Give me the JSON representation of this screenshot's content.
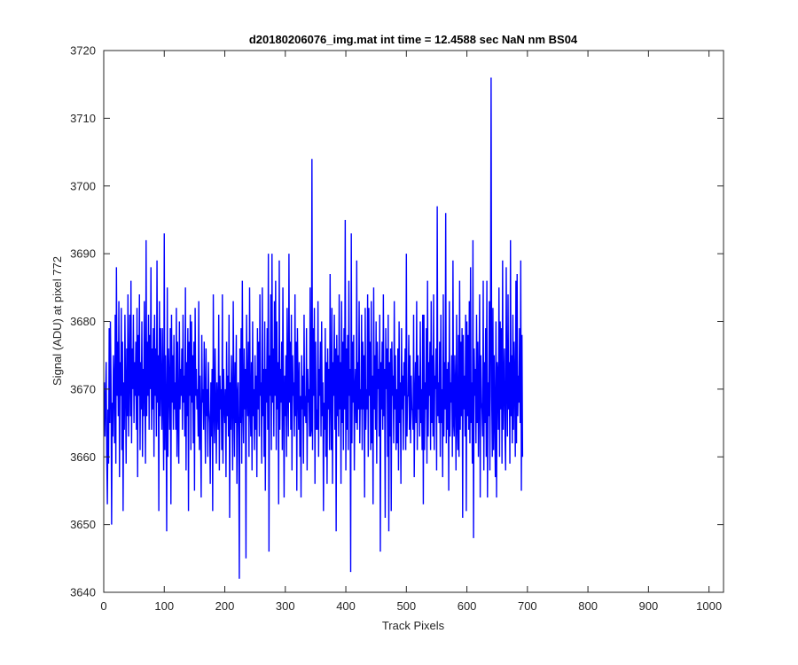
{
  "chart_data": {
    "type": "line",
    "title": "d20180206076_img.mat int time = 12.4588 sec  NaN nm BS04",
    "xlabel": "Track Pixels",
    "ylabel": "Signal (ADU) at pixel 772",
    "xlim": [
      0,
      1024
    ],
    "ylim": [
      3640,
      3720
    ],
    "xticks": [
      0,
      100,
      200,
      300,
      400,
      500,
      600,
      700,
      800,
      900,
      1000
    ],
    "yticks": [
      3640,
      3650,
      3660,
      3670,
      3680,
      3690,
      3700,
      3710,
      3720
    ],
    "grid": false,
    "legend": "none",
    "series": [
      {
        "color": "#0000ff",
        "x_start": 1,
        "x_step": 1,
        "values": [
          3671,
          3663,
          3668,
          3674,
          3660,
          3653,
          3667,
          3659,
          3679,
          3665,
          3680,
          3672,
          3650,
          3668,
          3663,
          3675,
          3671,
          3662,
          3681,
          3659,
          3688,
          3669,
          3677,
          3666,
          3683,
          3657,
          3674,
          3669,
          3682,
          3661,
          3677,
          3652,
          3671,
          3664,
          3681,
          3670,
          3659,
          3676,
          3666,
          3684,
          3663,
          3672,
          3681,
          3666,
          3686,
          3662,
          3676,
          3670,
          3681,
          3665,
          3674,
          3669,
          3677,
          3664,
          3682,
          3657,
          3678,
          3669,
          3684,
          3661,
          3674,
          3667,
          3680,
          3660,
          3673,
          3666,
          3683,
          3670,
          3659,
          3692,
          3666,
          3677,
          3669,
          3681,
          3664,
          3678,
          3670,
          3688,
          3664,
          3676,
          3667,
          3679,
          3660,
          3681,
          3669,
          3676,
          3663,
          3689,
          3668,
          3675,
          3652,
          3683,
          3666,
          3679,
          3670,
          3664,
          3679,
          3668,
          3658,
          3693,
          3661,
          3675,
          3667,
          3649,
          3685,
          3660,
          3676,
          3671,
          3664,
          3679,
          3653,
          3681,
          3668,
          3675,
          3664,
          3678,
          3667,
          3671,
          3664,
          3682,
          3660,
          3677,
          3666,
          3659,
          3680,
          3667,
          3673,
          3669,
          3676,
          3664,
          3681,
          3668,
          3672,
          3663,
          3685,
          3658,
          3674,
          3666,
          3679,
          3652,
          3677,
          3669,
          3681,
          3661,
          3680,
          3668,
          3675,
          3662,
          3677,
          3655,
          3682,
          3669,
          3673,
          3667,
          3670,
          3663,
          3683,
          3661,
          3672,
          3665,
          3654,
          3678,
          3668,
          3670,
          3664,
          3677,
          3669,
          3659,
          3676,
          3666,
          3670,
          3660,
          3674,
          3667,
          3665,
          3656,
          3671,
          3663,
          3673,
          3652,
          3684,
          3668,
          3662,
          3676,
          3668,
          3659,
          3671,
          3667,
          3664,
          3681,
          3658,
          3672,
          3667,
          3670,
          3661,
          3684,
          3659,
          3673,
          3668,
          3665,
          3670,
          3657,
          3677,
          3666,
          3672,
          3663,
          3681,
          3651,
          3671,
          3664,
          3675,
          3668,
          3658,
          3683,
          3669,
          3660,
          3674,
          3665,
          3678,
          3656,
          3669,
          3671,
          3663,
          3642,
          3676,
          3665,
          3679,
          3659,
          3686,
          3668,
          3662,
          3676,
          3667,
          3673,
          3645,
          3681,
          3670,
          3666,
          3677,
          3660,
          3685,
          3668,
          3663,
          3674,
          3658,
          3680,
          3666,
          3670,
          3661,
          3675,
          3664,
          3672,
          3657,
          3679,
          3667,
          3677,
          3663,
          3684,
          3669,
          3671,
          3659,
          3685,
          3666,
          3673,
          3660,
          3680,
          3655,
          3673,
          3668,
          3679,
          3664,
          3690,
          3646,
          3675,
          3669,
          3684,
          3661,
          3690,
          3668,
          3676,
          3663,
          3683,
          3669,
          3686,
          3661,
          3680,
          3667,
          3674,
          3653,
          3689,
          3664,
          3673,
          3668,
          3677,
          3661,
          3685,
          3669,
          3654,
          3672,
          3666,
          3675,
          3660,
          3682,
          3670,
          3663,
          3690,
          3668,
          3677,
          3664,
          3681,
          3658,
          3675,
          3669,
          3671,
          3663,
          3684,
          3666,
          3677,
          3655,
          3679,
          3671,
          3664,
          3674,
          3660,
          3669,
          3654,
          3675,
          3667,
          3672,
          3659,
          3681,
          3666,
          3669,
          3665,
          3679,
          3658,
          3673,
          3668,
          3670,
          3663,
          3685,
          3663,
          3664,
          3704,
          3661,
          3679,
          3669,
          3682,
          3656,
          3677,
          3664,
          3667,
          3664,
          3683,
          3660,
          3673,
          3669,
          3677,
          3663,
          3680,
          3666,
          3671,
          3652,
          3668,
          3664,
          3679,
          3660,
          3674,
          3656,
          3676,
          3667,
          3673,
          3661,
          3687,
          3669,
          3661,
          3682,
          3656,
          3674,
          3669,
          3681,
          3664,
          3676,
          3649,
          3678,
          3666,
          3675,
          3663,
          3684,
          3667,
          3674,
          3656,
          3683,
          3665,
          3677,
          3661,
          3679,
          3667,
          3695,
          3658,
          3676,
          3664,
          3678,
          3661,
          3686,
          3669,
          3673,
          3643,
          3693,
          3662,
          3677,
          3668,
          3678,
          3658,
          3670,
          3673,
          3665,
          3689,
          3664,
          3674,
          3667,
          3683,
          3662,
          3670,
          3667,
          3681,
          3661,
          3677,
          3667,
          3675,
          3654,
          3682,
          3664,
          3670,
          3667,
          3684,
          3660,
          3682,
          3669,
          3677,
          3661,
          3683,
          3662,
          3672,
          3653,
          3685,
          3667,
          3675,
          3664,
          3680,
          3659,
          3677,
          3670,
          3673,
          3663,
          3681,
          3646,
          3674,
          3667,
          3677,
          3664,
          3684,
          3666,
          3673,
          3651,
          3679,
          3670,
          3676,
          3660,
          3681,
          3649,
          3674,
          3663,
          3676,
          3652,
          3677,
          3669,
          3672,
          3662,
          3683,
          3667,
          3675,
          3661,
          3670,
          3662,
          3676,
          3658,
          3680,
          3665,
          3671,
          3656,
          3679,
          3667,
          3672,
          3661,
          3674,
          3669,
          3676,
          3661,
          3690,
          3663,
          3669,
          3669,
          3678,
          3664,
          3675,
          3662,
          3672,
          3667,
          3667,
          3664,
          3681,
          3657,
          3668,
          3674,
          3665,
          3683,
          3661,
          3675,
          3667,
          3672,
          3663,
          3680,
          3665,
          3670,
          3661,
          3681,
          3653,
          3681,
          3661,
          3671,
          3667,
          3679,
          3659,
          3686,
          3663,
          3674,
          3669,
          3677,
          3661,
          3683,
          3665,
          3675,
          3663,
          3684,
          3661,
          3672,
          3670,
          3676,
          3658,
          3697,
          3666,
          3671,
          3665,
          3677,
          3660,
          3681,
          3665,
          3670,
          3657,
          3684,
          3663,
          3674,
          3667,
          3696,
          3662,
          3673,
          3664,
          3674,
          3655,
          3683,
          3663,
          3671,
          3668,
          3675,
          3660,
          3689,
          3665,
          3663,
          3675,
          3670,
          3658,
          3681,
          3665,
          3661,
          3678,
          3660,
          3686,
          3664,
          3677,
          3666,
          3679,
          3651,
          3678,
          3667,
          3672,
          3663,
          3681,
          3652,
          3680,
          3666,
          3678,
          3664,
          3683,
          3662,
          3688,
          3665,
          3671,
          3659,
          3692,
          3648,
          3676,
          3669,
          3673,
          3662,
          3681,
          3665,
          3677,
          3660,
          3670,
          3684,
          3654,
          3675,
          3668,
          3667,
          3663,
          3686,
          3658,
          3674,
          3665,
          3679,
          3660,
          3686,
          3654,
          3671,
          3666,
          3683,
          3658,
          3677,
          3716,
          3669,
          3660,
          3682,
          3661,
          3675,
          3666,
          3657,
          3680,
          3654,
          3674,
          3672,
          3664,
          3685,
          3660,
          3680,
          3667,
          3679,
          3659,
          3689,
          3664,
          3670,
          3676,
          3663,
          3658,
          3688,
          3671,
          3663,
          3684,
          3667,
          3674,
          3659,
          3692,
          3666,
          3675,
          3662,
          3681,
          3664,
          3677,
          3671,
          3660,
          3686,
          3662,
          3687,
          3666,
          3672,
          3668,
          3679,
          3665,
          3689,
          3655,
          3678,
          3660
        ]
      }
    ]
  }
}
